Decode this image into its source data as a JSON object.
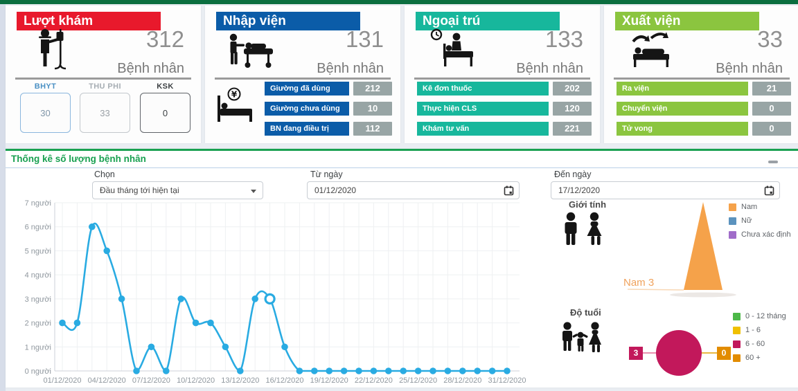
{
  "theme": {
    "topbar": "#0b6e3f",
    "page_bg": "#e9edf2",
    "section_green": "#18a050",
    "value_box_grey": "#98a5a5"
  },
  "cards": [
    {
      "title": "Lượt khám",
      "color": "#e8192c",
      "value": "312",
      "unit": "Bệnh nhân",
      "sub_boxes": [
        {
          "label": "BHYT",
          "value": "30",
          "accent": "#4a90c4",
          "border": "#8ab6dd",
          "value_color": "#7f95a8"
        },
        {
          "label": "THU PHI",
          "value": "33",
          "accent": "#a6adb3",
          "border": "#c3c8cc",
          "value_color": "#9aa0a6"
        },
        {
          "label": "KSK",
          "value": "0",
          "accent": "#3c4043",
          "border": "#5f6368",
          "value_color": "#3c4043"
        }
      ]
    },
    {
      "title": "Nhập viện",
      "color": "#0b5ca8",
      "value": "131",
      "unit": "Bệnh nhân",
      "rows": [
        {
          "label": "Giường đã dùng",
          "value": "212"
        },
        {
          "label": "Giường chưa dùng",
          "value": "10"
        },
        {
          "label": "BN đang điều trị",
          "value": "112"
        }
      ]
    },
    {
      "title": "Ngoại trú",
      "color": "#17b79c",
      "value": "133",
      "unit": "Bệnh nhân",
      "rows": [
        {
          "label": "Kê đơn thuốc",
          "value": "202"
        },
        {
          "label": "Thực hiện CLS",
          "value": "120"
        },
        {
          "label": "Khám tư vấn",
          "value": "221"
        }
      ]
    },
    {
      "title": "Xuất viện",
      "color": "#8bc53f",
      "value": "33",
      "unit": "Bệnh nhân",
      "rows": [
        {
          "label": "Ra viện",
          "value": "21"
        },
        {
          "label": "Chuyển viện",
          "value": "0"
        },
        {
          "label": "Tử vong",
          "value": "0"
        }
      ]
    }
  ],
  "stats_panel": {
    "title": "Thống kê số lượng bệnh nhân",
    "filters": {
      "select_label": "Chọn",
      "select_value": "Đầu tháng tới hiện tại",
      "from_label": "Từ ngày",
      "from_value": "01/12/2020",
      "to_label": "Đến ngày",
      "to_value": "17/12/2020"
    },
    "gender_title": "Giới tính",
    "age_title": "Độ tuổi"
  },
  "chart_data": [
    {
      "type": "line",
      "title": "Thống kê số lượng bệnh nhân",
      "x_tick_labels": [
        "01/12/2020",
        "04/12/2020",
        "07/12/2020",
        "10/12/2020",
        "13/12/2020",
        "16/12/2020",
        "19/12/2020",
        "22/12/2020",
        "25/12/2020",
        "28/12/2020",
        "31/12/2020"
      ],
      "values": [
        2,
        2,
        6,
        5,
        3,
        0,
        1,
        0,
        3,
        2,
        2,
        1,
        0,
        3,
        3,
        1,
        0,
        0,
        0,
        0,
        0,
        0,
        0,
        0,
        0,
        0,
        0,
        0,
        0,
        0,
        0
      ],
      "highlight_index": 14,
      "y_unit": "người",
      "ylim": [
        0,
        7
      ],
      "grid": true,
      "line_color": "#29abe2"
    },
    {
      "type": "funnel",
      "title": "Giới tính",
      "series": [
        {
          "name": "Nam",
          "value": 3,
          "color": "#f5a24a"
        },
        {
          "name": "Nữ",
          "value": 0,
          "color": "#5b93be"
        },
        {
          "name": "Chưa xác định",
          "value": 0,
          "color": "#a06cc9"
        }
      ],
      "callout": "Nam 3",
      "legend_position": "right"
    },
    {
      "type": "pie",
      "title": "Độ tuổi",
      "slices": [
        {
          "label": "0 - 12 tháng",
          "value": 0,
          "color": "#4cb848"
        },
        {
          "label": "1 - 6",
          "value": 0,
          "color": "#f0c000"
        },
        {
          "label": "6 - 60",
          "value": 3,
          "color": "#c2185b"
        },
        {
          "label": "60 +",
          "value": 0,
          "color": "#e28c00"
        }
      ],
      "left_callout": "3",
      "right_callout": "0",
      "legend_position": "right"
    }
  ]
}
